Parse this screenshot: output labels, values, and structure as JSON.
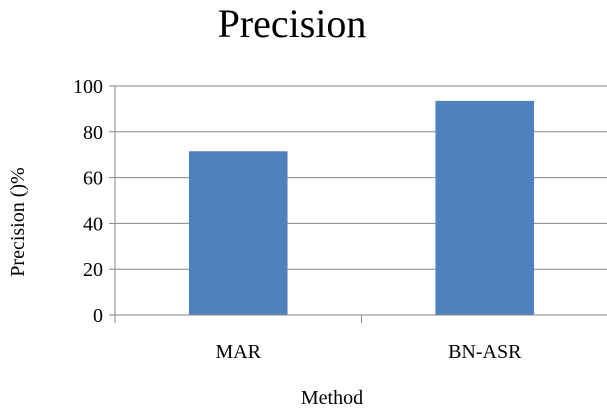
{
  "chart_data": {
    "type": "bar",
    "title": "Precision",
    "xlabel": "Method",
    "ylabel": "Precision ()%",
    "categories": [
      "MAR",
      "BN-ASR"
    ],
    "values": [
      71.5,
      93.5
    ],
    "ylim": [
      0,
      100
    ],
    "yticks": [
      0,
      20,
      40,
      60,
      80,
      100
    ],
    "grid": true,
    "legend": "none",
    "bar_color": "#4F81BD",
    "grid_color": "#868686",
    "axis_color": "#868686"
  }
}
